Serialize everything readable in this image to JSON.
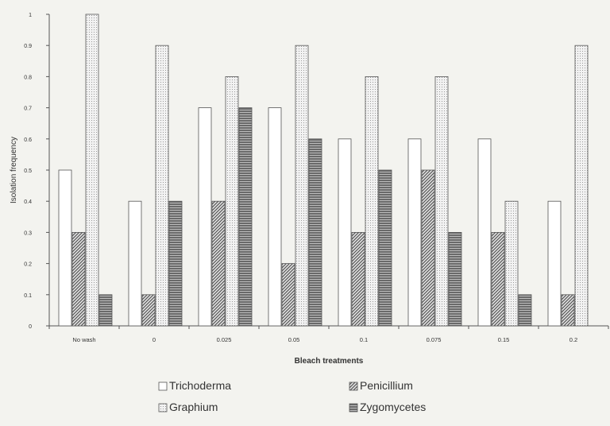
{
  "chart_data": {
    "type": "bar",
    "xlabel": "Bleach treatments",
    "ylabel": "Isolation frequency",
    "ylim": [
      0,
      1
    ],
    "yticks": [
      "0",
      "0.1",
      "0.2",
      "0.3",
      "0.4",
      "0.5",
      "0.6",
      "0.7",
      "0.8",
      "0.9",
      "1"
    ],
    "grid": false,
    "legend_position": "bottom",
    "categories": [
      "No wash",
      "0",
      "0.025",
      "0.05",
      "0.1",
      "0.075",
      "0.15",
      "0.2"
    ],
    "series": [
      {
        "name": "Trichoderma",
        "values": [
          0.5,
          0.4,
          0.7,
          0.7,
          0.6,
          0.6,
          0.6,
          0.4
        ],
        "pattern": "plain"
      },
      {
        "name": "Penicillium",
        "values": [
          0.3,
          0.1,
          0.4,
          0.2,
          0.3,
          0.5,
          0.3,
          0.1
        ],
        "pattern": "diagonal"
      },
      {
        "name": "Graphium",
        "values": [
          1.0,
          0.9,
          0.8,
          0.9,
          0.8,
          0.8,
          0.4,
          0.9
        ],
        "pattern": "dots"
      },
      {
        "name": "Zygomycetes",
        "values": [
          0.1,
          0.4,
          0.7,
          0.6,
          0.5,
          0.3,
          0.1,
          null
        ],
        "pattern": "horizontal"
      }
    ]
  }
}
